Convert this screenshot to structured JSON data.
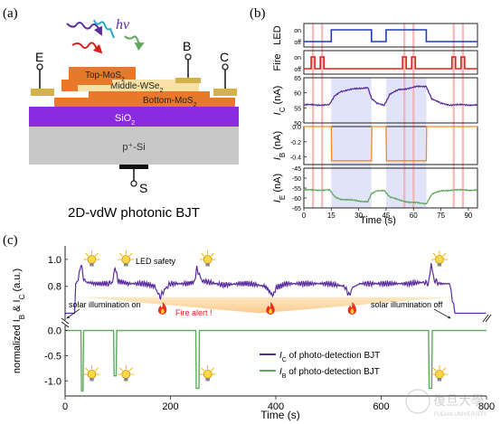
{
  "panel_a": {
    "label": "(a)",
    "photon_label": "hν",
    "terminal_e": "E",
    "terminal_b": "B",
    "terminal_c": "C",
    "terminal_s": "S",
    "layer_top": "Top-MoS",
    "layer_middle": "Middle-WSe",
    "layer_bottom": "Bottom-MoS",
    "layer_sio2": "SiO",
    "layer_si": "p⁺-Si",
    "subscript_2": "2",
    "caption": "2D-vdW photonic BJT",
    "colors": {
      "top": "#e8782a",
      "middle": "#f9e0a4",
      "bottom": "#e8782a",
      "sio2": "#8a2be2",
      "si": "#c8c8c8",
      "contact": "#d4b24a"
    }
  },
  "panel_b": {
    "label": "(b)",
    "xlabel": "Time (s)",
    "xlim": [
      0,
      95
    ],
    "xticks": [
      0,
      15,
      30,
      45,
      60,
      75,
      90
    ],
    "highlight_bands": [
      [
        15,
        37
      ],
      [
        45,
        67
      ]
    ],
    "fire_times": [
      5,
      10,
      55,
      60,
      82,
      87
    ],
    "subplots": [
      {
        "key": "led",
        "ylabel": "LED",
        "type": "digital",
        "ytick_labels": [
          "on",
          "off"
        ],
        "color": "#1f3fb0",
        "on_intervals": [
          [
            15,
            37
          ],
          [
            45,
            67
          ]
        ]
      },
      {
        "key": "fire",
        "ylabel": "Fire",
        "type": "digital",
        "ytick_labels": [
          "on",
          "off"
        ],
        "color": "#e0201e",
        "on_intervals": [
          [
            4,
            6
          ],
          [
            9,
            11
          ],
          [
            54,
            56
          ],
          [
            59,
            61
          ],
          [
            81,
            83
          ],
          [
            86,
            88
          ]
        ]
      },
      {
        "key": "ic",
        "ylabel": "I",
        "ysub": "C",
        "yunit": " (nA)",
        "type": "analog",
        "ylim": [
          50,
          65
        ],
        "yticks": [
          50,
          55,
          60,
          65
        ],
        "color": "#5a2d9c",
        "x": [
          0,
          14,
          17,
          20,
          25,
          30,
          35,
          37,
          40,
          44,
          47,
          52,
          57,
          62,
          67,
          70,
          75,
          80,
          85,
          90,
          95
        ],
        "y": [
          56,
          56,
          59,
          60.5,
          61,
          61.5,
          61.8,
          58,
          56.5,
          56,
          59.5,
          61,
          61.5,
          62,
          62.2,
          58,
          56.5,
          56,
          56,
          56,
          56
        ]
      },
      {
        "key": "ib",
        "ylabel": "I",
        "ysub": "B",
        "yunit": " (nA)",
        "type": "analog",
        "ylim": [
          -0.5,
          0.0
        ],
        "ytick_labels": [
          "0.0",
          "-0.2",
          "-0.4"
        ],
        "yticks": [
          0.0,
          -0.2,
          -0.4
        ],
        "color": "#f08a24",
        "x": [
          0,
          15,
          15.2,
          37,
          37.2,
          45,
          45.2,
          67,
          67.2,
          95
        ],
        "y": [
          0,
          0,
          -0.45,
          -0.45,
          0,
          0,
          -0.45,
          -0.45,
          0,
          0
        ]
      },
      {
        "key": "ie",
        "ylabel": "I",
        "ysub": "E",
        "yunit": " (nA)",
        "type": "analog",
        "ylim": [
          -65,
          -45
        ],
        "yticks": [
          -45,
          -50,
          -55,
          -60,
          -65
        ],
        "color": "#5fa85f",
        "x": [
          0,
          14,
          17,
          20,
          25,
          30,
          35,
          37,
          40,
          44,
          47,
          52,
          57,
          62,
          67,
          70,
          75,
          80,
          85,
          90,
          95
        ],
        "y": [
          -56,
          -56,
          -59.5,
          -60.5,
          -61,
          -61.5,
          -61.8,
          -58,
          -56.5,
          -56,
          -59.5,
          -61,
          -62,
          -62.5,
          -62.8,
          -58,
          -56.5,
          -56,
          -56,
          -56,
          -56
        ]
      }
    ]
  },
  "chart_data": {
    "type": "line",
    "panel_label": "(c)",
    "xlabel": "Time (s)",
    "ylabel_main": "normalized I",
    "ylabel_sub_b": "B",
    "ylabel_amp": " & I",
    "ylabel_sub_c": "C",
    "ylabel_unit": " (a.u.)",
    "xlim": [
      0,
      800
    ],
    "xticks": [
      0,
      200,
      400,
      600,
      800
    ],
    "top_ylim": [
      0.55,
      1.1
    ],
    "top_yticks": [
      0.8,
      1.0
    ],
    "bottom_ylim": [
      -1.3,
      0.1
    ],
    "bottom_yticks": [
      0.0,
      -0.5,
      -1.0
    ],
    "series": [
      {
        "name": "I_C of photo-detection BJT",
        "legend_symbol": "I",
        "legend_sub": "C",
        "legend_text": " of photo-detection BJT",
        "color": "#5a2d9c",
        "x": [
          0,
          18,
          20,
          25,
          30,
          35,
          40,
          60,
          80,
          90,
          95,
          100,
          120,
          150,
          170,
          180,
          190,
          200,
          230,
          245,
          250,
          260,
          300,
          330,
          350,
          380,
          395,
          400,
          420,
          450,
          500,
          530,
          540,
          545,
          560,
          600,
          650,
          680,
          690,
          695,
          700,
          710,
          730,
          740,
          790,
          800
        ],
        "y": [
          0.6,
          0.6,
          0.82,
          0.85,
          0.97,
          0.86,
          0.83,
          0.82,
          0.82,
          0.83,
          0.95,
          0.84,
          0.82,
          0.82,
          0.8,
          0.72,
          0.78,
          0.82,
          0.82,
          0.83,
          0.93,
          0.84,
          0.81,
          0.82,
          0.82,
          0.8,
          0.73,
          0.79,
          0.82,
          0.82,
          0.82,
          0.8,
          0.73,
          0.79,
          0.82,
          0.82,
          0.82,
          0.83,
          0.82,
          0.97,
          0.85,
          0.82,
          0.82,
          0.6,
          0.6,
          0.6
        ]
      },
      {
        "name": "I_B of photo-detection BJT",
        "legend_symbol": "I",
        "legend_sub": "B",
        "legend_text": " of photo-detection BJT",
        "color": "#5fa85f",
        "x": [
          0,
          30,
          31,
          34,
          35,
          92,
          93,
          97,
          98,
          248,
          249,
          254,
          255,
          690,
          691,
          696,
          697,
          800
        ],
        "y": [
          0,
          0,
          -1.2,
          -1.2,
          0,
          0,
          -0.9,
          -0.9,
          0,
          0,
          -1.15,
          -1.15,
          0,
          0,
          -1.15,
          -1.15,
          0,
          0
        ]
      }
    ],
    "annotations": {
      "led_safety": "LED safety",
      "solar_on": "solar illumination on",
      "solar_off": "solar illumination off",
      "fire_alert": "Fire alert !"
    },
    "fire_icon_times": [
      185,
      390,
      545
    ],
    "bulb_times_top": [
      30,
      95,
      250,
      690
    ],
    "bulb_times_bottom": [
      30,
      95,
      250,
      690
    ],
    "fill_colors": {
      "top": "#fde3b0",
      "bottom": "#fbd0a0"
    }
  },
  "watermark": {
    "cn": "復旦大學",
    "en": "FUDAN UNIVERSITY"
  }
}
